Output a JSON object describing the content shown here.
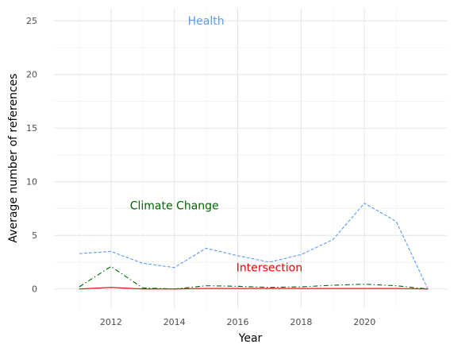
{
  "chart_data": {
    "type": "line",
    "title": "",
    "xlabel": "Year",
    "ylabel": "Average number of references",
    "x": [
      2011,
      2012,
      2013,
      2014,
      2015,
      2016,
      2017,
      2018,
      2019,
      2020,
      2021,
      2022
    ],
    "xlim": [
      2010.2,
      2022.6
    ],
    "ylim": [
      -1.8,
      26.2
    ],
    "x_ticks": [
      2012,
      2014,
      2016,
      2018,
      2020
    ],
    "x_tick_labels": [
      "2012",
      "2014",
      "2016",
      "2018",
      "2020"
    ],
    "y_ticks": [
      0,
      5,
      10,
      15,
      20,
      25
    ],
    "y_tick_labels": [
      "0",
      "5",
      "10",
      "15",
      "20",
      "25"
    ],
    "grid": true,
    "legend": "none",
    "series": [
      {
        "values": [
          3.3,
          3.5,
          2.4,
          2.0,
          3.8,
          3.1,
          2.5,
          3.2,
          4.6,
          8.0,
          6.3,
          0.0
        ],
        "color": "#5b9cf6",
        "line_style": "dashed"
      },
      {
        "values": [
          0.2,
          2.1,
          0.1,
          0.0,
          0.3,
          0.25,
          0.15,
          0.2,
          0.35,
          0.45,
          0.3,
          0.0
        ],
        "color": "#006400",
        "line_style": "dashdot"
      },
      {
        "values": [
          0.0,
          0.15,
          0.0,
          0.0,
          0.05,
          0.05,
          0.05,
          0.05,
          0.05,
          0.05,
          0.05,
          0.0
        ],
        "color": "#ee0000",
        "line_style": "solid"
      }
    ],
    "annotations": [
      {
        "text": "Health",
        "x": 2015.0,
        "y": 25.0,
        "color": "#5b9cf6"
      },
      {
        "text": "Climate Change",
        "x": 2014.0,
        "y": 7.8,
        "color": "#006400"
      },
      {
        "text": "Intersection",
        "x": 2017.0,
        "y": 2.0,
        "color": "#ee0000"
      }
    ]
  }
}
